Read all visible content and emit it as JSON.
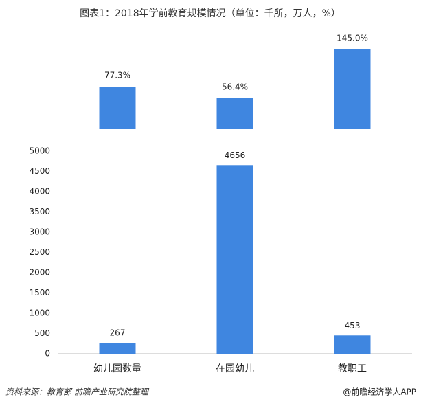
{
  "title": "图表1：2018年学前教育规模情况（单位：千所，万人，%）",
  "source": "资料来源：教育部 前瞻产业研究院整理",
  "credit": "@前瞻经济学人APP",
  "chart_data": [
    {
      "type": "bar",
      "values": [
        77.3,
        56.4,
        145.0
      ],
      "value_labels": [
        "77.3%",
        "56.4%",
        "145.0%"
      ],
      "color": "#3f86e0"
    },
    {
      "type": "bar",
      "categories": [
        "幼儿园数量",
        "在园幼儿",
        "教职工"
      ],
      "values": [
        267,
        4656,
        453
      ],
      "color": "#3f86e0",
      "ylim": [
        0,
        5000
      ],
      "yticks": [
        0,
        500,
        1000,
        1500,
        2000,
        2500,
        3000,
        3500,
        4000,
        4500,
        5000
      ],
      "grid": false
    }
  ]
}
